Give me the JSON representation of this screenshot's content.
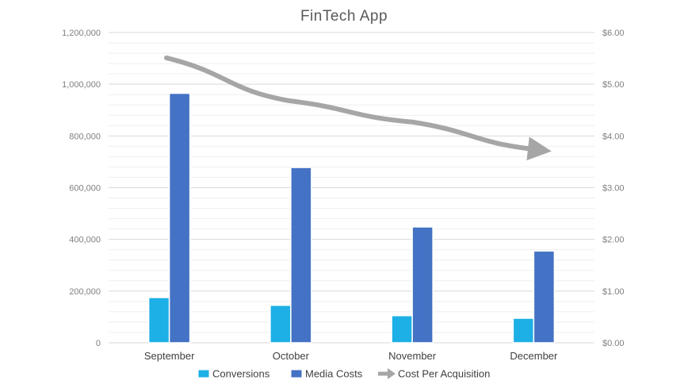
{
  "chart_data": {
    "type": "bar",
    "title": "FinTech  App",
    "categories": [
      "September",
      "October",
      "November",
      "December"
    ],
    "series": [
      {
        "name": "Conversions",
        "axis": "left",
        "kind": "bar",
        "color": "#1CB0E6",
        "values": [
          175000,
          145000,
          105000,
          95000
        ]
      },
      {
        "name": "Media Costs",
        "axis": "left",
        "kind": "bar",
        "color": "#4472C4",
        "values": [
          965000,
          678000,
          448000,
          355000
        ]
      },
      {
        "name": "Cost Per Acquisition",
        "axis": "right",
        "kind": "line",
        "color": "#A6A6A6",
        "values": [
          5.51,
          4.68,
          4.27,
          3.74
        ]
      }
    ],
    "left_axis": {
      "ylim": [
        0,
        1200000
      ],
      "ticks": [
        "0",
        "200,000",
        "400,000",
        "600,000",
        "800,000",
        "1,000,000",
        "1,200,000"
      ]
    },
    "right_axis": {
      "ylim": [
        0,
        6
      ],
      "ticks": [
        "$0.00",
        "$1.00",
        "$2.00",
        "$3.00",
        "$4.00",
        "$5.00",
        "$6.00"
      ]
    },
    "grid": true,
    "legend": "bottom"
  }
}
